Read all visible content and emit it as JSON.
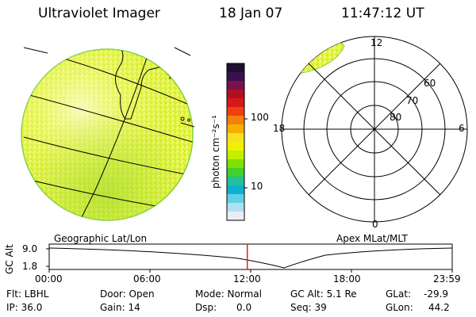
{
  "header": {
    "instrument": "Ultraviolet Imager",
    "date": "18 Jan 07",
    "time": "11:47:12 UT"
  },
  "colorbar": {
    "label": "photon cm⁻²s⁻¹",
    "ticks": [
      "100",
      "10"
    ],
    "colors": [
      "#1b1030",
      "#3a1050",
      "#7a1050",
      "#b01020",
      "#d81818",
      "#f04010",
      "#f48010",
      "#f8b000",
      "#f8e020",
      "#f0f000",
      "#c0f000",
      "#80e000",
      "#40d030",
      "#20c0a0",
      "#10b0d0",
      "#60d0e8",
      "#b0e0f0",
      "#e8eef4"
    ]
  },
  "globe": {
    "caption": "Geographic Lat/Lon"
  },
  "polar": {
    "caption": "Apex MLat/MLT",
    "mlt_labels": {
      "top": "12",
      "left": "18",
      "right": "6",
      "bottom": "0"
    },
    "lat_labels": [
      "60",
      "70",
      "80"
    ]
  },
  "timeline": {
    "ylabel": "GC Alt",
    "yticks": [
      "9.0",
      "1.8"
    ],
    "xticks": [
      "00:00",
      "06:00",
      "12:00",
      "18:00",
      "23:59"
    ],
    "marker_time_hours": 11.787,
    "marker_color": "#e02020"
  },
  "status": {
    "flt": "Flt: LBHL",
    "ip": "IP: 36.0",
    "door": "Door: Open",
    "gain": "Gain: 14",
    "mode": "Mode: Normal",
    "dsp_label": "Dsp:",
    "dsp_value": "0.0",
    "gcalt": "GC Alt: 5.1 Re",
    "seq": "Seq: 39",
    "glat_label": "GLat:",
    "glat_value": "-29.9",
    "glon_label": "GLon:",
    "glon_value": "44.2"
  }
}
